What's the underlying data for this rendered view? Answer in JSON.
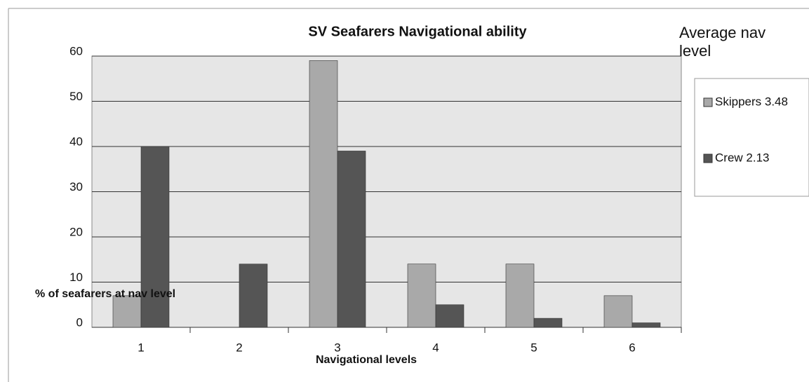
{
  "chart_data": {
    "type": "bar",
    "title": "SV Seafarers Navigational ability",
    "x_label": "Navigational levels",
    "y_label": "% of seafarers at nav level",
    "legend_title": "Average nav level",
    "categories": [
      "1",
      "2",
      "3",
      "4",
      "5",
      "6"
    ],
    "series": [
      {
        "name": "Skippers 3.48",
        "color": "#a9a9a9",
        "values": [
          7,
          0,
          59,
          14,
          14,
          7
        ]
      },
      {
        "name": "Crew 2.13",
        "color": "#555555",
        "values": [
          40,
          14,
          39,
          5,
          2,
          1
        ]
      }
    ],
    "ylim": [
      0,
      60
    ],
    "yticks": [
      0,
      10,
      20,
      30,
      40,
      50,
      60
    ],
    "grid": true,
    "legend": "right"
  }
}
